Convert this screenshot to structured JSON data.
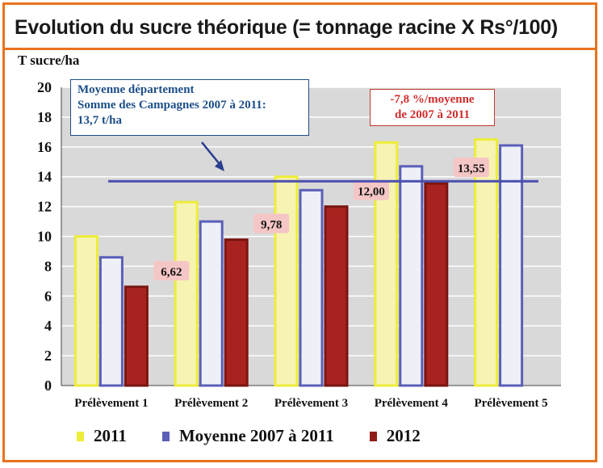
{
  "title": "Evolution du sucre théorique (= tonnage racine X Rs°/100)",
  "chart_data": {
    "type": "bar",
    "ylabel": "T sucre/ha",
    "ylim": [
      0,
      20
    ],
    "yticks": [
      "0",
      "2",
      "4",
      "6",
      "8",
      "10",
      "12",
      "14",
      "16",
      "18",
      "20"
    ],
    "grid": true,
    "legend_position": "bottom",
    "categories": [
      "Prélèvement 1",
      "Prélèvement 2",
      "Prélèvement 3",
      "Prélèvement 4",
      "Prélèvement 5"
    ],
    "series": [
      {
        "name": "2011",
        "color": "#f6f3b3",
        "border": "#eded3a",
        "values": [
          10.0,
          12.3,
          14.0,
          16.3,
          16.5
        ]
      },
      {
        "name": "Moyenne 2007 à 2011",
        "color": "#eef0f8",
        "border": "#5a5fb8",
        "values": [
          8.6,
          11.0,
          13.1,
          14.7,
          16.1
        ]
      },
      {
        "name": "2012",
        "color": "#a8231f",
        "border": "#7a1512",
        "values": [
          6.62,
          9.78,
          12.0,
          13.55,
          null
        ]
      }
    ],
    "data_labels": [
      "6,62",
      "9,78",
      "12,00",
      "13,55"
    ],
    "reference_line": {
      "value": 13.7,
      "color": "#4b4fb0"
    },
    "annotations": {
      "blue_note": [
        "Moyenne département",
        "Somme des Campagnes 2007 à 2011:",
        "13,7 t/ha"
      ],
      "red_note": [
        "-7,8 %/moyenne",
        "de 2007 à 2011"
      ]
    }
  },
  "legend": [
    {
      "label": "2011",
      "color": "#eded3a"
    },
    {
      "label": "Moyenne 2007 à 2011",
      "color": "#5a5fb8"
    },
    {
      "label": "2012",
      "color": "#8e1d19"
    }
  ]
}
